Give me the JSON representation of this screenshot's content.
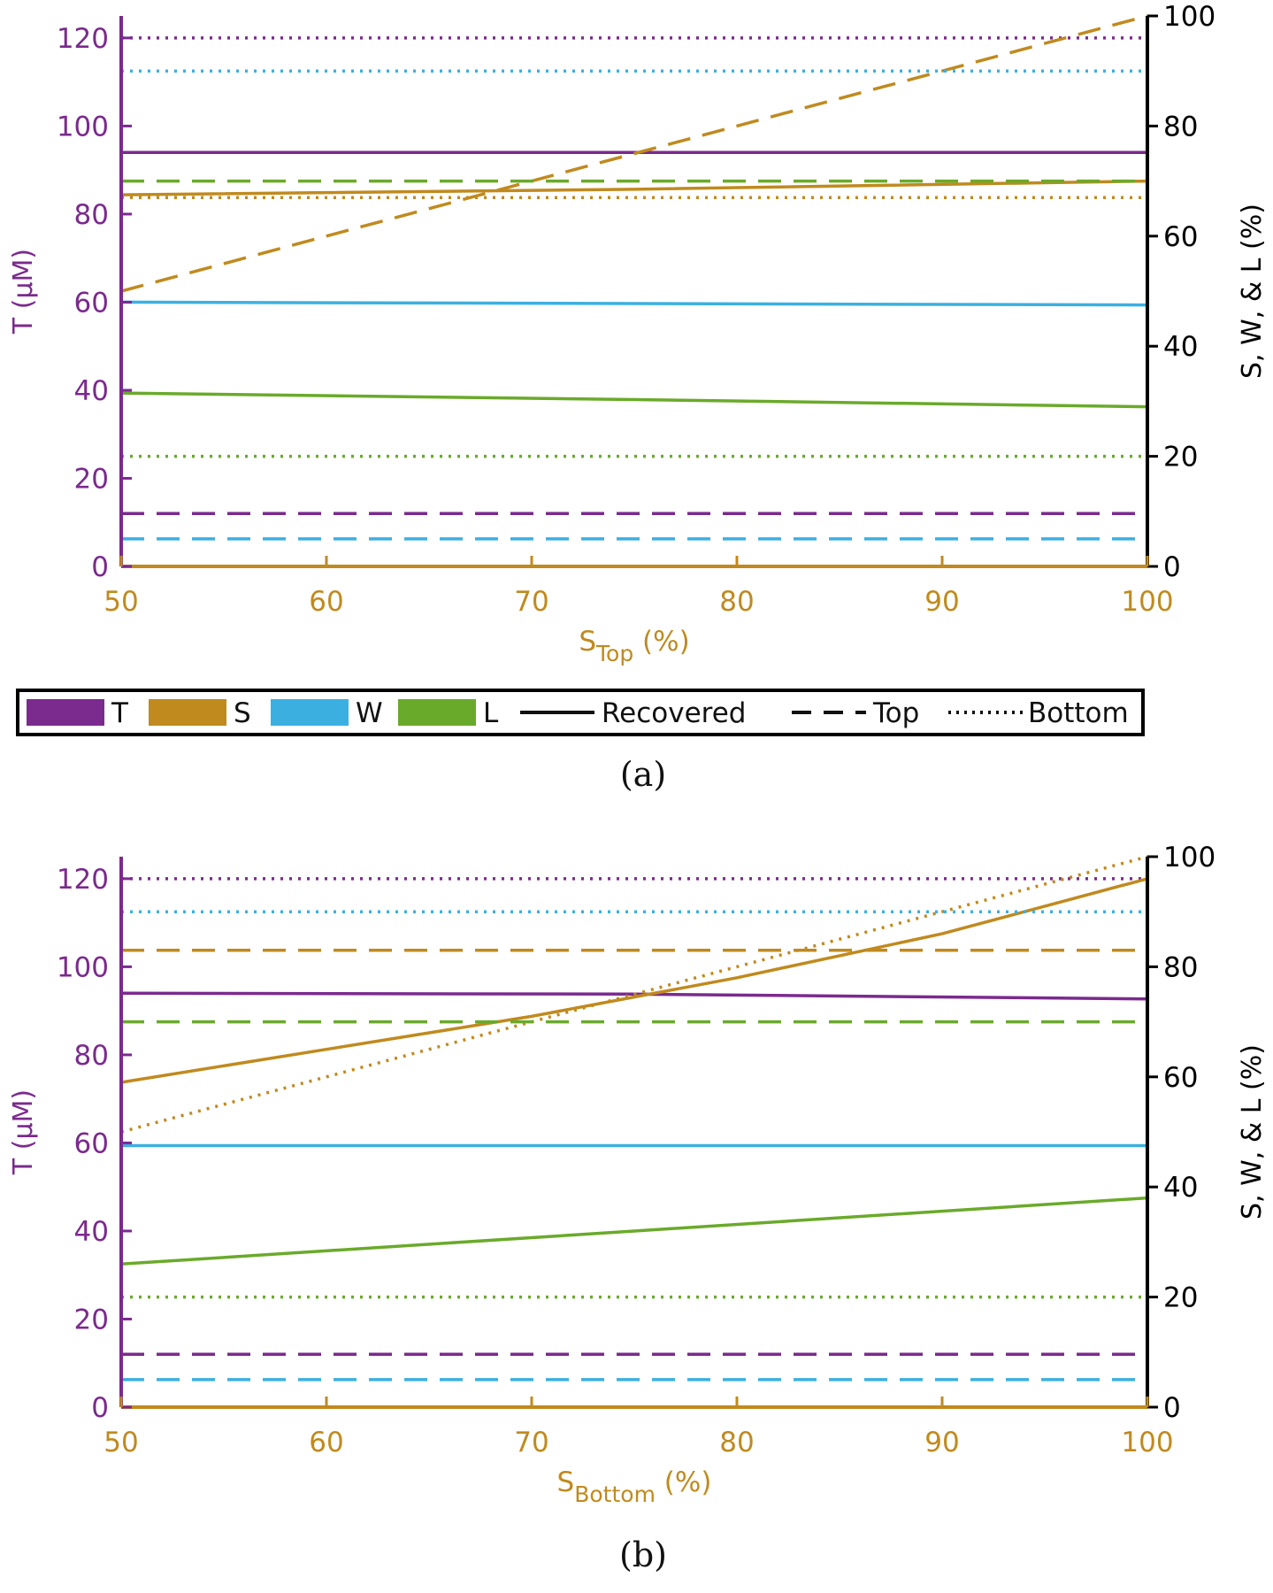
{
  "colors": {
    "T": "#7b2a8e",
    "S": "#c08a1e",
    "W": "#3bb0e0",
    "L": "#6aaa2a",
    "right_axis": "#000000"
  },
  "legend": {
    "entries": [
      {
        "key": "T",
        "label": "T",
        "kind": "color"
      },
      {
        "key": "S",
        "label": "S",
        "kind": "color"
      },
      {
        "key": "W",
        "label": "W",
        "kind": "color"
      },
      {
        "key": "L",
        "label": "L",
        "kind": "color"
      },
      {
        "key": "recovered",
        "label": "Recovered",
        "kind": "solid"
      },
      {
        "key": "top",
        "label": "Top",
        "kind": "dashed"
      },
      {
        "key": "bottom",
        "label": "Bottom",
        "kind": "dotted"
      }
    ]
  },
  "chart_data": [
    {
      "type": "line",
      "panel": "a",
      "caption": "(a)",
      "xlabel_main": "S",
      "xlabel_sub": "Top",
      "xlabel_unit": " (%)",
      "ylabel_left": "T (μM)",
      "ylabel_right": "S, W, & L (%)",
      "xlim": [
        50,
        100
      ],
      "ylim_left": [
        0,
        125
      ],
      "ylim_right": [
        0,
        100
      ],
      "xticks": [
        50,
        60,
        70,
        80,
        90,
        100
      ],
      "yticks_left": [
        0,
        20,
        40,
        60,
        80,
        100,
        120
      ],
      "yticks_right": [
        0,
        20,
        40,
        60,
        80,
        100
      ],
      "series": [
        {
          "name": "T Recovered",
          "var": "T",
          "style": "solid",
          "axis": "left",
          "x": [
            50,
            100
          ],
          "y": [
            94,
            94
          ]
        },
        {
          "name": "T Top",
          "var": "T",
          "style": "dashed",
          "axis": "left",
          "x": [
            50,
            100
          ],
          "y": [
            12,
            12
          ]
        },
        {
          "name": "T Bottom",
          "var": "T",
          "style": "dotted",
          "axis": "left",
          "x": [
            50,
            100
          ],
          "y": [
            120,
            120
          ]
        },
        {
          "name": "S Recovered",
          "var": "S",
          "style": "solid",
          "axis": "right",
          "x": [
            50,
            75,
            100
          ],
          "y": [
            67.5,
            68.5,
            70
          ]
        },
        {
          "name": "S Top",
          "var": "S",
          "style": "dashed",
          "axis": "right",
          "x": [
            50,
            100
          ],
          "y": [
            50,
            100
          ]
        },
        {
          "name": "S Bottom",
          "var": "S",
          "style": "dotted",
          "axis": "right",
          "x": [
            50,
            100
          ],
          "y": [
            67,
            67
          ]
        },
        {
          "name": "W Recovered",
          "var": "W",
          "style": "solid",
          "axis": "right",
          "x": [
            50,
            100
          ],
          "y": [
            48,
            47.5
          ]
        },
        {
          "name": "W Top",
          "var": "W",
          "style": "dashed",
          "axis": "right",
          "x": [
            50,
            100
          ],
          "y": [
            5,
            5
          ]
        },
        {
          "name": "W Bottom",
          "var": "W",
          "style": "dotted",
          "axis": "right",
          "x": [
            50,
            100
          ],
          "y": [
            90,
            90
          ]
        },
        {
          "name": "L Recovered",
          "var": "L",
          "style": "solid",
          "axis": "right",
          "x": [
            50,
            75,
            100
          ],
          "y": [
            31.5,
            30.3,
            29
          ]
        },
        {
          "name": "L Top",
          "var": "L",
          "style": "dashed",
          "axis": "right",
          "x": [
            50,
            100
          ],
          "y": [
            70,
            70
          ]
        },
        {
          "name": "L Bottom",
          "var": "L",
          "style": "dotted",
          "axis": "right",
          "x": [
            50,
            100
          ],
          "y": [
            20,
            20
          ]
        }
      ]
    },
    {
      "type": "line",
      "panel": "b",
      "caption": "(b)",
      "xlabel_main": "S",
      "xlabel_sub": "Bottom",
      "xlabel_unit": " (%)",
      "ylabel_left": "T (μM)",
      "ylabel_right": "S, W, & L (%)",
      "xlim": [
        50,
        100
      ],
      "ylim_left": [
        0,
        125
      ],
      "ylim_right": [
        0,
        100
      ],
      "xticks": [
        50,
        60,
        70,
        80,
        90,
        100
      ],
      "yticks_left": [
        0,
        20,
        40,
        60,
        80,
        100,
        120
      ],
      "yticks_right": [
        0,
        20,
        40,
        60,
        80,
        100
      ],
      "series": [
        {
          "name": "T Recovered",
          "var": "T",
          "style": "solid",
          "axis": "left",
          "x": [
            50,
            75,
            100
          ],
          "y": [
            94,
            93.8,
            92.7
          ]
        },
        {
          "name": "T Top",
          "var": "T",
          "style": "dashed",
          "axis": "left",
          "x": [
            50,
            100
          ],
          "y": [
            12,
            12
          ]
        },
        {
          "name": "T Bottom",
          "var": "T",
          "style": "dotted",
          "axis": "left",
          "x": [
            50,
            100
          ],
          "y": [
            120,
            120
          ]
        },
        {
          "name": "S Recovered",
          "var": "S",
          "style": "solid",
          "axis": "right",
          "x": [
            50,
            60,
            70,
            80,
            90,
            100
          ],
          "y": [
            59,
            65,
            71,
            78,
            86,
            96
          ]
        },
        {
          "name": "S Top",
          "var": "S",
          "style": "dashed",
          "axis": "right",
          "x": [
            50,
            100
          ],
          "y": [
            83,
            83
          ]
        },
        {
          "name": "S Bottom",
          "var": "S",
          "style": "dotted",
          "axis": "right",
          "x": [
            50,
            100
          ],
          "y": [
            50,
            100
          ]
        },
        {
          "name": "W Recovered",
          "var": "W",
          "style": "solid",
          "axis": "right",
          "x": [
            50,
            100
          ],
          "y": [
            47.5,
            47.5
          ]
        },
        {
          "name": "W Top",
          "var": "W",
          "style": "dashed",
          "axis": "right",
          "x": [
            50,
            100
          ],
          "y": [
            5,
            5
          ]
        },
        {
          "name": "W Bottom",
          "var": "W",
          "style": "dotted",
          "axis": "right",
          "x": [
            50,
            100
          ],
          "y": [
            90,
            90
          ]
        },
        {
          "name": "L Recovered",
          "var": "L",
          "style": "solid",
          "axis": "right",
          "x": [
            50,
            75,
            100
          ],
          "y": [
            26,
            32,
            38
          ]
        },
        {
          "name": "L Top",
          "var": "L",
          "style": "dashed",
          "axis": "right",
          "x": [
            50,
            100
          ],
          "y": [
            70,
            70
          ]
        },
        {
          "name": "L Bottom",
          "var": "L",
          "style": "dotted",
          "axis": "right",
          "x": [
            50,
            100
          ],
          "y": [
            20,
            20
          ]
        }
      ]
    }
  ]
}
